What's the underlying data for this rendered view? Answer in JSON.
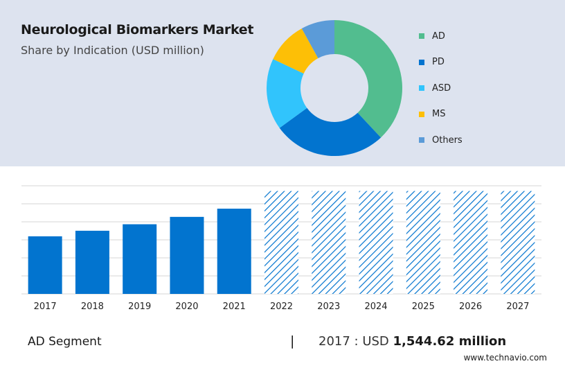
{
  "header": {
    "title": "Neurological Biomarkers Market",
    "subtitle": "Share by Indication (USD million)"
  },
  "footer": {
    "segment": "AD Segment",
    "separator": "|",
    "year_label": "2017 : USD",
    "value": "1,544.62 million",
    "source": "www.technavio.com"
  },
  "chart_data": [
    {
      "type": "pie",
      "donut": true,
      "labels": [
        "AD",
        "PD",
        "ASD",
        "MS",
        "Others"
      ],
      "values": [
        38,
        27,
        17,
        10,
        8
      ],
      "colors": [
        "#52bd8f",
        "#0274cf",
        "#31c4fc",
        "#fdbf06",
        "#5b9bd8"
      ],
      "legend_position": "right"
    },
    {
      "type": "bar",
      "categories": [
        "2017",
        "2018",
        "2019",
        "2020",
        "2021",
        "2022",
        "2023",
        "2024",
        "2025",
        "2026",
        "2027"
      ],
      "values": [
        1544.62,
        1694,
        1868,
        2066,
        2286,
        2760,
        2760,
        2760,
        2760,
        2760,
        2760
      ],
      "forecast_from": "2022",
      "colors": {
        "actual": "#0274cf",
        "forecast_pattern": "#0274cf"
      },
      "ylim": [
        0,
        2900
      ],
      "grid": true,
      "y_tick_labels_visible": false
    }
  ]
}
